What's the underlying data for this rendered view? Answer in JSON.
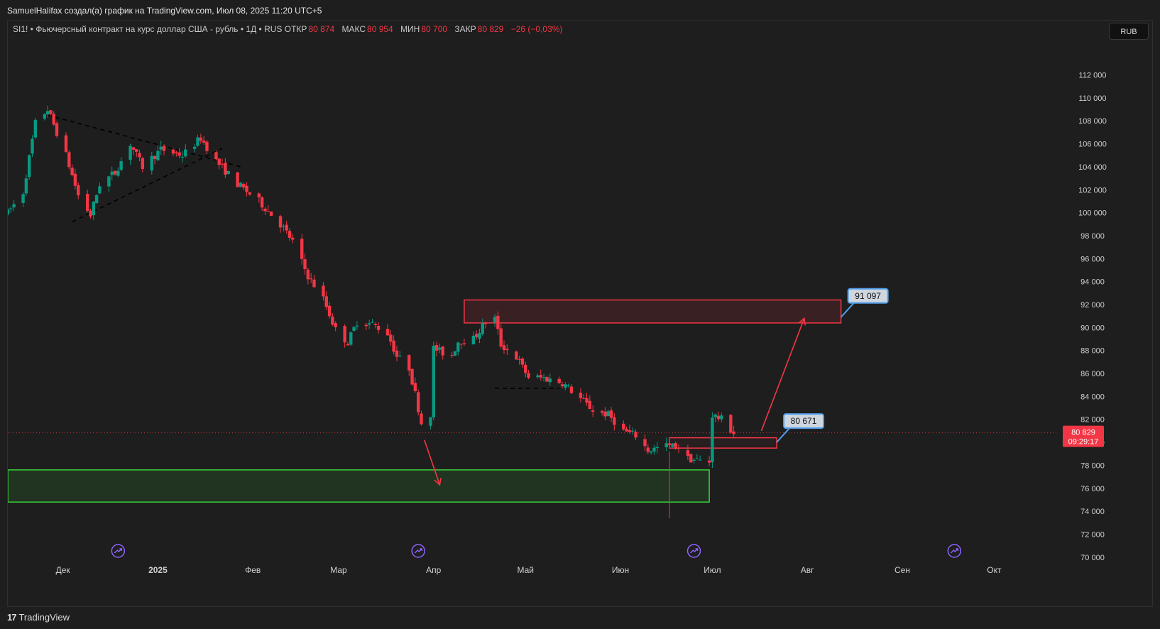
{
  "header": {
    "caption": "SamuelHalifax создал(а) график на TradingView.com, Июл 08, 2025 11:20 UTC+5"
  },
  "legend": {
    "description": "SI1! • Фьючерсный контракт на курс доллар США - рубль • 1Д • RUS",
    "open_label": "ОТКР",
    "open": "80 874",
    "high_label": "МАКС",
    "high": "80 954",
    "low_label": "МИН",
    "low": "80 700",
    "close_label": "ЗАКР",
    "close": "80 829",
    "change": "−26 (−0,03%)"
  },
  "currency_button": "RUB",
  "footer": {
    "logo_mark": "17",
    "brand": "TradingView"
  },
  "chart_data": {
    "type": "candlestick",
    "interval": "1D",
    "y_axis": {
      "range": [
        69000,
        115000
      ],
      "ticks": [
        70000,
        72000,
        74000,
        76000,
        78000,
        80000,
        82000,
        84000,
        86000,
        88000,
        90000,
        92000,
        94000,
        96000,
        98000,
        100000,
        102000,
        104000,
        106000,
        108000,
        110000,
        112000
      ],
      "tick_labels": [
        "70 000",
        "72 000",
        "74 000",
        "76 000",
        "78 000",
        "80 000",
        "82 000",
        "84 000",
        "86 000",
        "88 000",
        "90 000",
        "92 000",
        "94 000",
        "96 000",
        "98 000",
        "100 000",
        "102 000",
        "104 000",
        "106 000",
        "108 000",
        "110 000",
        "112 000"
      ],
      "position": "right"
    },
    "x_axis": {
      "range": [
        "2024-11-13",
        "2025-10-22"
      ],
      "labels": [
        {
          "date": "2024-12-01",
          "text": "Дек",
          "bold": false
        },
        {
          "date": "2025-01-01",
          "text": "2025",
          "bold": true
        },
        {
          "date": "2025-02-01",
          "text": "Фев",
          "bold": false
        },
        {
          "date": "2025-03-01",
          "text": "Мар",
          "bold": false
        },
        {
          "date": "2025-04-01",
          "text": "Апр",
          "bold": false
        },
        {
          "date": "2025-05-01",
          "text": "Май",
          "bold": false
        },
        {
          "date": "2025-06-01",
          "text": "Июн",
          "bold": false
        },
        {
          "date": "2025-07-01",
          "text": "Июл",
          "bold": false
        },
        {
          "date": "2025-08-01",
          "text": "Авг",
          "bold": false
        },
        {
          "date": "2025-09-01",
          "text": "Сен",
          "bold": false
        },
        {
          "date": "2025-10-01",
          "text": "Окт",
          "bold": false
        }
      ]
    },
    "grid": false,
    "colors": {
      "up": "#089981",
      "down": "#f23645",
      "zone_green": "#3ad13a",
      "zone_red": "#f23645",
      "callout": "#4f9de8"
    },
    "price_path": [
      {
        "date": "2024-11-13",
        "price": 100000
      },
      {
        "date": "2024-11-18",
        "price": 101800
      },
      {
        "date": "2024-11-22",
        "price": 107800
      },
      {
        "date": "2024-11-26",
        "price": 109000
      },
      {
        "date": "2024-12-02",
        "price": 105000
      },
      {
        "date": "2024-12-06",
        "price": 101500
      },
      {
        "date": "2024-12-10",
        "price": 99800
      },
      {
        "date": "2024-12-13",
        "price": 102500
      },
      {
        "date": "2024-12-18",
        "price": 103500
      },
      {
        "date": "2024-12-23",
        "price": 106000
      },
      {
        "date": "2024-12-27",
        "price": 104000
      },
      {
        "date": "2025-01-02",
        "price": 105500
      },
      {
        "date": "2025-01-09",
        "price": 105000
      },
      {
        "date": "2025-01-15",
        "price": 106500
      },
      {
        "date": "2025-01-20",
        "price": 104500
      },
      {
        "date": "2025-01-27",
        "price": 102500
      },
      {
        "date": "2025-02-03",
        "price": 101000
      },
      {
        "date": "2025-02-10",
        "price": 99000
      },
      {
        "date": "2025-02-14",
        "price": 97500
      },
      {
        "date": "2025-02-19",
        "price": 94500
      },
      {
        "date": "2025-02-24",
        "price": 92500
      },
      {
        "date": "2025-02-28",
        "price": 89800
      },
      {
        "date": "2025-03-04",
        "price": 88700
      },
      {
        "date": "2025-03-07",
        "price": 90500
      },
      {
        "date": "2025-03-12",
        "price": 90300
      },
      {
        "date": "2025-03-17",
        "price": 89500
      },
      {
        "date": "2025-03-20",
        "price": 87500
      },
      {
        "date": "2025-03-24",
        "price": 86500
      },
      {
        "date": "2025-03-26",
        "price": 84200
      },
      {
        "date": "2025-03-28",
        "price": 81700
      },
      {
        "date": "2025-03-31",
        "price": 82500
      },
      {
        "date": "2025-04-01",
        "price": 88200
      },
      {
        "date": "2025-04-04",
        "price": 87800
      },
      {
        "date": "2025-04-07",
        "price": 87600
      },
      {
        "date": "2025-04-09",
        "price": 88800
      },
      {
        "date": "2025-04-14",
        "price": 89000
      },
      {
        "date": "2025-04-18",
        "price": 90500
      },
      {
        "date": "2025-04-21",
        "price": 90800
      },
      {
        "date": "2025-04-23",
        "price": 88500
      },
      {
        "date": "2025-04-28",
        "price": 87400
      },
      {
        "date": "2025-05-02",
        "price": 85700
      },
      {
        "date": "2025-05-07",
        "price": 85600
      },
      {
        "date": "2025-05-13",
        "price": 85200
      },
      {
        "date": "2025-05-19",
        "price": 83800
      },
      {
        "date": "2025-05-23",
        "price": 82800
      },
      {
        "date": "2025-05-28",
        "price": 82400
      },
      {
        "date": "2025-06-02",
        "price": 81000
      },
      {
        "date": "2025-06-06",
        "price": 80600
      },
      {
        "date": "2025-06-10",
        "price": 79300
      },
      {
        "date": "2025-06-16",
        "price": 79700
      },
      {
        "date": "2025-06-20",
        "price": 79600
      },
      {
        "date": "2025-06-23",
        "price": 78600
      },
      {
        "date": "2025-06-27",
        "price": 78400
      },
      {
        "date": "2025-06-30",
        "price": 78300
      },
      {
        "date": "2025-07-01",
        "price": 82400
      },
      {
        "date": "2025-07-04",
        "price": 82000
      },
      {
        "date": "2025-07-08",
        "price": 80829
      }
    ],
    "annotations": {
      "resistance_zone": {
        "from": "2025-04-11",
        "to": "2025-08-12",
        "top": 92400,
        "bottom": 90400
      },
      "support_zone": {
        "from": "2024-11-13",
        "to": "2025-06-30",
        "top": 77600,
        "bottom": 74800
      },
      "entry_zone": {
        "from": "2025-06-17",
        "to": "2025-07-22",
        "top": 80400,
        "bottom": 79500
      },
      "triangle_upper_line": [
        {
          "date": "2024-11-26",
          "price": 108500
        },
        {
          "date": "2025-01-28",
          "price": 104000
        }
      ],
      "triangle_lower_line": [
        {
          "date": "2024-12-04",
          "price": 99200
        },
        {
          "date": "2025-01-22",
          "price": 105600
        }
      ],
      "flat_line": [
        {
          "date": "2025-04-21",
          "price": 84700
        },
        {
          "date": "2025-05-12",
          "price": 84700
        }
      ],
      "arrow_down": [
        {
          "date": "2025-03-29",
          "price": 80200
        },
        {
          "date": "2025-04-03",
          "price": 76300
        }
      ],
      "arrow_up": [
        {
          "date": "2025-07-17",
          "price": 81000
        },
        {
          "date": "2025-07-31",
          "price": 90800
        }
      ],
      "callout_91097": {
        "text": "91 097",
        "anchor_date": "2025-08-12",
        "anchor_price": 90900
      },
      "callout_80671": {
        "text": "80 671",
        "anchor_date": "2025-07-22",
        "anchor_price": 80000
      }
    },
    "last_price": {
      "value": 80829,
      "label": "80 829",
      "countdown": "09:29:17"
    },
    "events_dates": [
      "2024-12-19",
      "2025-03-27",
      "2025-06-25",
      "2025-09-18"
    ]
  }
}
